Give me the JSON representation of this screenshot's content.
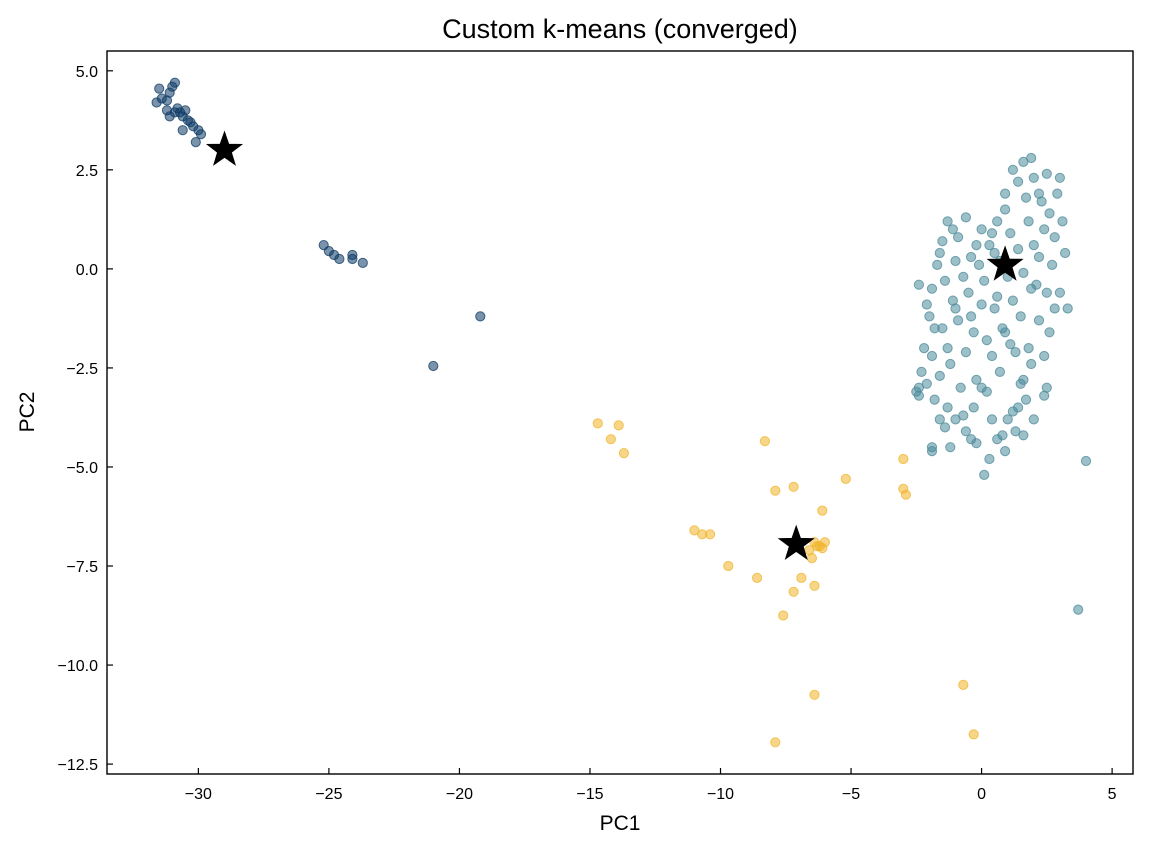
{
  "chart_data": {
    "type": "scatter",
    "title": "Custom k-means (converged)",
    "xlabel": "PC1",
    "ylabel": "PC2",
    "xlim": [
      -33.5,
      5.8
    ],
    "ylim": [
      -12.75,
      5.5
    ],
    "xticks": [
      -30,
      -25,
      -20,
      -15,
      -10,
      -5,
      0,
      5
    ],
    "yticks": [
      5.0,
      2.5,
      0.0,
      -2.5,
      -5.0,
      -7.5,
      -10.0,
      -12.5
    ],
    "xtick_labels": [
      "−30",
      "−25",
      "−20",
      "−15",
      "−10",
      "−5",
      "0",
      "5"
    ],
    "ytick_labels": [
      "5.0",
      "2.5",
      "0.0",
      "−2.5",
      "−5.0",
      "−7.5",
      "−10.0",
      "−12.5"
    ],
    "grid": false,
    "legend": "none",
    "series": [
      {
        "color": "#0d3b66",
        "points": [
          [
            -31.5,
            4.55
          ],
          [
            -31.6,
            4.2
          ],
          [
            -31.4,
            4.3
          ],
          [
            -31.2,
            4.25
          ],
          [
            -31.0,
            4.6
          ],
          [
            -30.9,
            4.7
          ],
          [
            -31.1,
            4.45
          ],
          [
            -30.8,
            4.05
          ],
          [
            -30.7,
            3.95
          ],
          [
            -30.5,
            4.0
          ],
          [
            -30.6,
            3.85
          ],
          [
            -30.4,
            3.75
          ],
          [
            -30.3,
            3.7
          ],
          [
            -30.2,
            3.6
          ],
          [
            -30.0,
            3.5
          ],
          [
            -29.9,
            3.4
          ],
          [
            -30.6,
            3.5
          ],
          [
            -30.1,
            3.2
          ],
          [
            -31.1,
            3.85
          ],
          [
            -31.2,
            4.0
          ],
          [
            -30.9,
            3.95
          ],
          [
            -25.2,
            0.6
          ],
          [
            -25.0,
            0.45
          ],
          [
            -24.8,
            0.35
          ],
          [
            -24.6,
            0.25
          ],
          [
            -24.1,
            0.25
          ],
          [
            -24.1,
            0.35
          ],
          [
            -23.7,
            0.15
          ],
          [
            -19.2,
            -1.2
          ],
          [
            -21.0,
            -2.45
          ]
        ]
      },
      {
        "color": "#4a8a9a",
        "points": [
          [
            -1.9,
            -4.6
          ],
          [
            -1.6,
            -3.8
          ],
          [
            -1.3,
            -3.5
          ],
          [
            -1.0,
            -3.8
          ],
          [
            -0.6,
            -4.1
          ],
          [
            -0.2,
            -4.4
          ],
          [
            0.3,
            -4.8
          ],
          [
            0.1,
            -5.2
          ],
          [
            0.6,
            -4.3
          ],
          [
            1.0,
            -3.8
          ],
          [
            1.4,
            -3.5
          ],
          [
            1.6,
            -2.8
          ],
          [
            1.3,
            -2.1
          ],
          [
            0.9,
            -1.6
          ],
          [
            0.5,
            -1.0
          ],
          [
            0.1,
            -0.3
          ],
          [
            -0.4,
            0.3
          ],
          [
            -0.9,
            0.8
          ],
          [
            -1.3,
            1.2
          ],
          [
            -1.5,
            0.7
          ],
          [
            -1.7,
            0.1
          ],
          [
            -1.9,
            -0.5
          ],
          [
            -2.0,
            -1.2
          ],
          [
            -2.2,
            -2.0
          ],
          [
            -2.3,
            -2.6
          ],
          [
            -2.4,
            -3.2
          ],
          [
            -1.8,
            -1.5
          ],
          [
            -1.2,
            -2.4
          ],
          [
            -0.8,
            -3.0
          ],
          [
            -0.3,
            -3.5
          ],
          [
            0.2,
            -3.1
          ],
          [
            0.7,
            -2.6
          ],
          [
            1.1,
            -1.9
          ],
          [
            1.5,
            -1.2
          ],
          [
            1.9,
            -0.5
          ],
          [
            2.2,
            0.3
          ],
          [
            2.4,
            1.0
          ],
          [
            2.3,
            1.7
          ],
          [
            2.0,
            2.3
          ],
          [
            1.6,
            2.7
          ],
          [
            1.2,
            2.5
          ],
          [
            0.9,
            1.9
          ],
          [
            0.6,
            1.2
          ],
          [
            0.3,
            0.6
          ],
          [
            -0.1,
            0.1
          ],
          [
            -0.5,
            -0.6
          ],
          [
            -0.9,
            -1.3
          ],
          [
            -1.3,
            -2.0
          ],
          [
            -1.6,
            -2.7
          ],
          [
            -1.8,
            -3.3
          ],
          [
            -1.4,
            -4.0
          ],
          [
            -0.7,
            -3.7
          ],
          [
            0.0,
            -3.0
          ],
          [
            0.4,
            -2.2
          ],
          [
            0.8,
            -1.5
          ],
          [
            1.2,
            -0.8
          ],
          [
            1.6,
            -0.1
          ],
          [
            2.0,
            0.6
          ],
          [
            2.6,
            1.4
          ],
          [
            2.8,
            0.8
          ],
          [
            2.7,
            0.1
          ],
          [
            2.5,
            -0.6
          ],
          [
            2.2,
            -1.3
          ],
          [
            1.8,
            -2.0
          ],
          [
            1.5,
            -2.9
          ],
          [
            1.2,
            -3.6
          ],
          [
            0.8,
            -4.2
          ],
          [
            0.4,
            -3.8
          ],
          [
            -0.2,
            -2.8
          ],
          [
            -0.6,
            -2.1
          ],
          [
            -1.0,
            -1.0
          ],
          [
            -1.4,
            -0.3
          ],
          [
            -1.6,
            0.4
          ],
          [
            -1.1,
            1.0
          ],
          [
            -0.6,
            1.3
          ],
          [
            0.0,
            1.0
          ],
          [
            0.5,
            0.4
          ],
          [
            1.0,
            -0.2
          ],
          [
            1.4,
            0.5
          ],
          [
            1.8,
            1.2
          ],
          [
            2.2,
            1.9
          ],
          [
            2.5,
            2.4
          ],
          [
            1.9,
            2.8
          ],
          [
            1.4,
            2.2
          ],
          [
            0.9,
            1.5
          ],
          [
            0.4,
            0.9
          ],
          [
            -0.2,
            0.6
          ],
          [
            -0.7,
            -0.2
          ],
          [
            -1.1,
            -0.8
          ],
          [
            -1.5,
            -1.5
          ],
          [
            -1.9,
            -2.2
          ],
          [
            -2.1,
            -2.9
          ],
          [
            -2.4,
            -3.0
          ],
          [
            -2.5,
            -3.1
          ],
          [
            -0.4,
            -4.3
          ],
          [
            0.9,
            -4.6
          ],
          [
            1.3,
            -4.1
          ],
          [
            1.7,
            -3.3
          ],
          [
            1.9,
            -2.4
          ],
          [
            2.4,
            -2.2
          ],
          [
            2.6,
            -1.6
          ],
          [
            2.8,
            -1.0
          ],
          [
            3.0,
            -0.6
          ],
          [
            3.2,
            0.4
          ],
          [
            3.1,
            1.2
          ],
          [
            2.9,
            1.9
          ],
          [
            3.0,
            2.3
          ],
          [
            2.5,
            -3.0
          ],
          [
            3.3,
            -1.0
          ],
          [
            2.4,
            -3.2
          ],
          [
            2.0,
            -3.8
          ],
          [
            1.6,
            -4.2
          ],
          [
            -2.1,
            -0.9
          ],
          [
            -2.4,
            -0.4
          ],
          [
            -1.9,
            -4.5
          ],
          [
            -1.2,
            -4.5
          ],
          [
            -1.0,
            0.2
          ],
          [
            -0.4,
            -1.2
          ],
          [
            0.2,
            -1.8
          ],
          [
            0.6,
            -0.7
          ],
          [
            1.7,
            1.8
          ],
          [
            2.1,
            -0.4
          ],
          [
            0.0,
            -0.9
          ],
          [
            0.7,
            0.2
          ],
          [
            1.1,
            0.9
          ],
          [
            -0.3,
            -1.6
          ],
          [
            3.7,
            -8.6
          ],
          [
            4.0,
            -4.85
          ]
        ]
      },
      {
        "color": "#f0b429",
        "points": [
          [
            -14.7,
            -3.9
          ],
          [
            -14.2,
            -4.3
          ],
          [
            -13.9,
            -3.95
          ],
          [
            -13.7,
            -4.65
          ],
          [
            -11.0,
            -6.6
          ],
          [
            -10.7,
            -6.7
          ],
          [
            -10.4,
            -6.7
          ],
          [
            -9.7,
            -7.5
          ],
          [
            -8.6,
            -7.8
          ],
          [
            -8.3,
            -4.35
          ],
          [
            -7.9,
            -5.6
          ],
          [
            -7.2,
            -5.5
          ],
          [
            -7.2,
            -8.15
          ],
          [
            -6.9,
            -7.8
          ],
          [
            -6.6,
            -7.1
          ],
          [
            -6.4,
            -6.9
          ],
          [
            -6.2,
            -7.0
          ],
          [
            -6.0,
            -6.9
          ],
          [
            -6.5,
            -7.3
          ],
          [
            -6.1,
            -7.05
          ],
          [
            -6.3,
            -7.0
          ],
          [
            -6.1,
            -6.1
          ],
          [
            -5.2,
            -5.3
          ],
          [
            -6.4,
            -8.0
          ],
          [
            -7.6,
            -8.75
          ],
          [
            -6.4,
            -10.75
          ],
          [
            -7.9,
            -11.95
          ],
          [
            -3.0,
            -4.8
          ],
          [
            -3.0,
            -5.55
          ],
          [
            -2.9,
            -5.7
          ],
          [
            -0.7,
            -10.5
          ],
          [
            -0.3,
            -11.75
          ]
        ]
      }
    ],
    "centroids": [
      [
        -29.0,
        3.0
      ],
      [
        0.9,
        0.1
      ],
      [
        -7.1,
        -6.95
      ]
    ],
    "centroid_color": "#000000"
  }
}
